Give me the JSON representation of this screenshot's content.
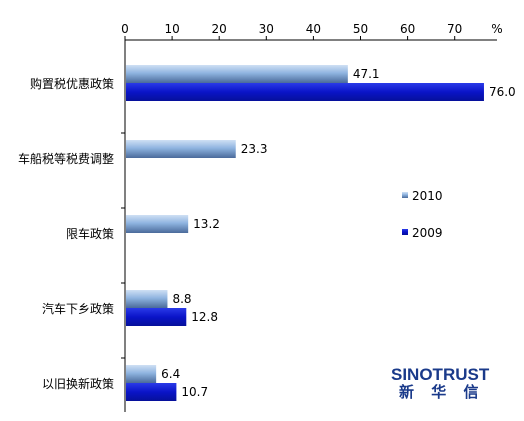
{
  "chart_data": {
    "type": "bar",
    "orientation": "horizontal",
    "axis_unit": "%",
    "xlim": [
      0,
      75
    ],
    "x_ticks": [
      0,
      10,
      20,
      30,
      40,
      50,
      60,
      70
    ],
    "categories": [
      "购置税优惠政策",
      "车船税等税费调整",
      "限车政策",
      "汽车下乡政策",
      "以旧换新政策"
    ],
    "series": [
      {
        "name": "2010",
        "color": "#7fa8d8",
        "values": [
          47.1,
          23.3,
          13.2,
          8.8,
          6.4
        ]
      },
      {
        "name": "2009",
        "color": "#0a14c8",
        "values": [
          76.0,
          null,
          null,
          12.8,
          10.7
        ]
      }
    ],
    "value_labels": {
      "2010": [
        "47.1",
        "23.3",
        "13.2",
        "8.8",
        "6.4"
      ],
      "2009": [
        "76.0",
        "",
        "",
        "12.8",
        "10.7"
      ]
    },
    "legend": "center-right",
    "grid": false
  },
  "logo": {
    "en": "SINOTRUST",
    "cn": "新 华 信"
  }
}
